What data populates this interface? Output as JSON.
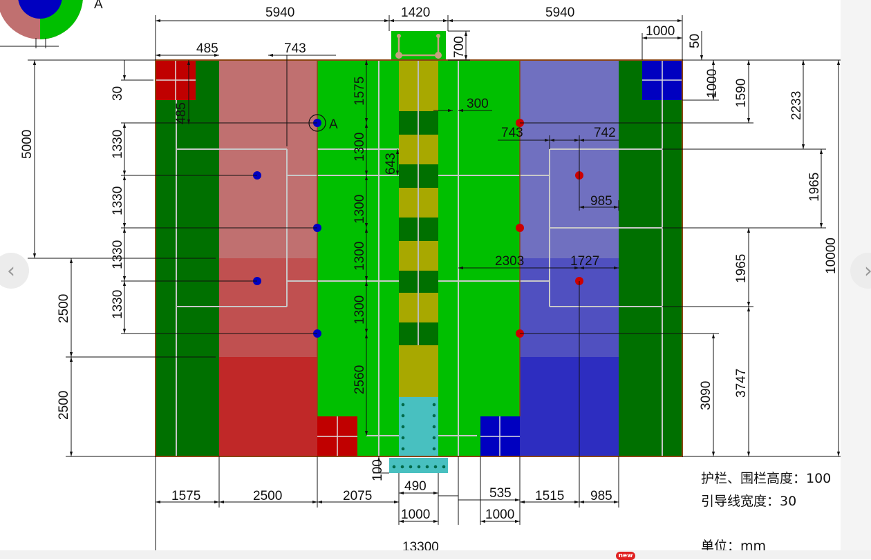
{
  "diagram": {
    "point_label": "A",
    "dims_top": {
      "left": "5940",
      "mid": "1420",
      "right": "5940",
      "sq": "1000",
      "gap": "50",
      "gate": "700",
      "w485": "485",
      "w743": "743"
    },
    "dims_left": {
      "five_k": "5000",
      "corner": "30",
      "sq485": "485",
      "r1": "1330",
      "r2": "1330",
      "r3": "1330",
      "r4": "1330",
      "b1": "2500",
      "b2": "2500"
    },
    "dims_inner": {
      "c1": "1575",
      "c2": "1300",
      "c3": "1300",
      "c4": "1300",
      "c5": "1300",
      "c6": "2560",
      "d643": "643",
      "d300": "300",
      "d100": "100"
    },
    "dims_right_inner": {
      "a743": "743",
      "a742": "742",
      "a985": "985",
      "a2303": "2303",
      "a1727": "1727"
    },
    "dims_right": {
      "r1000": "1000",
      "r1590": "1590",
      "r2233": "2233",
      "r1965a": "1965",
      "r1965b": "1965",
      "r10000": "10000",
      "r3747": "3747",
      "r3090": "3090"
    },
    "dims_bottom": {
      "b1575": "1575",
      "b2500": "2500",
      "b2075": "2075",
      "b490": "490",
      "b535": "535",
      "b1515": "1515",
      "b985": "985",
      "b1000a": "1000",
      "b1000b": "1000",
      "total": "13300"
    }
  },
  "notes": {
    "line1": "护栏、围栏高度：100",
    "line2": "引导线宽度：30",
    "unit": "单位：mm"
  },
  "badge": "new",
  "colors": {
    "dark_green": "#007000",
    "field_green": "#00bf00",
    "light_red": "#c07070",
    "mid_red": "#c05050",
    "deep_red": "#c02828",
    "light_blue": "#7070c0",
    "mid_blue": "#5050c0",
    "deep_blue": "#2d2dc0",
    "olive": "#a8a800",
    "teal": "#48c0c0",
    "red_square": "#c00000",
    "blue_square": "#0000c0",
    "border": "#8b4513",
    "dot_blue": "#0000c0",
    "dot_red": "#cc0000"
  },
  "icons": {
    "prev": "chevron-left-icon",
    "next": "chevron-right-icon"
  }
}
